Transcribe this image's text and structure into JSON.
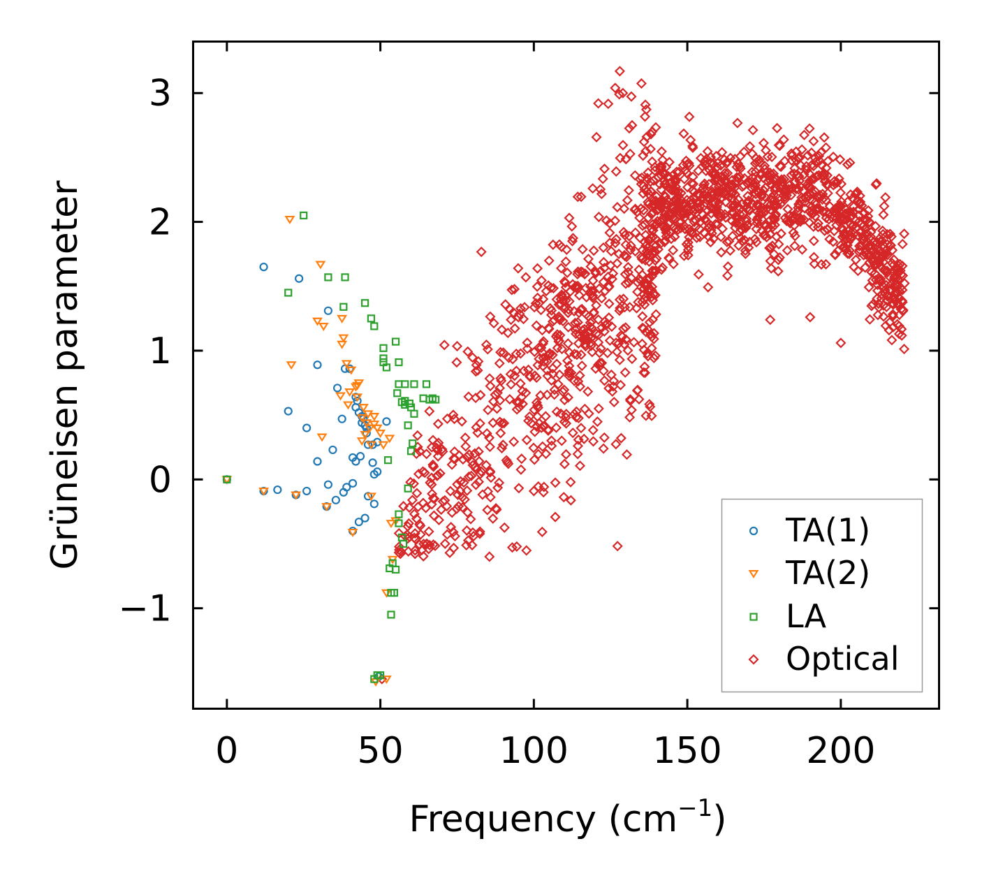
{
  "chart_data": {
    "type": "scatter",
    "title": "",
    "xlabel": "Frequency (cm",
    "xlabel_sup": "−1",
    "xlabel_close": ")",
    "ylabel": "Grüneisen parameter",
    "xlim": [
      -11,
      232
    ],
    "ylim": [
      -1.78,
      3.4
    ],
    "xticks": [
      0,
      50,
      100,
      150,
      200
    ],
    "xtick_labels": [
      "0",
      "50",
      "100",
      "150",
      "200"
    ],
    "yticks": [
      -1,
      0,
      1,
      2,
      3
    ],
    "ytick_labels": [
      "−1",
      "0",
      "1",
      "2",
      "3"
    ],
    "grid": false,
    "legend_position": "bottom-right",
    "series": [
      {
        "name": "TA(1)",
        "marker": "circle",
        "color": "#1f77b4",
        "points": [
          [
            0,
            0
          ],
          [
            12,
            1.65
          ],
          [
            12,
            -0.09
          ],
          [
            16.5,
            -0.08
          ],
          [
            20,
            0.53
          ],
          [
            22.5,
            -0.12
          ],
          [
            23.5,
            1.56
          ],
          [
            26,
            0.4
          ],
          [
            26,
            -0.09
          ],
          [
            29.5,
            0.89
          ],
          [
            29.5,
            0.14
          ],
          [
            32.5,
            -0.21
          ],
          [
            33,
            1.31
          ],
          [
            33,
            -0.04
          ],
          [
            34.5,
            0.23
          ],
          [
            35.5,
            -0.16
          ],
          [
            36,
            0.71
          ],
          [
            37.5,
            0.47
          ],
          [
            38,
            -0.1
          ],
          [
            38.5,
            0.86
          ],
          [
            39,
            -0.06
          ],
          [
            40,
            0.86
          ],
          [
            41,
            0.17
          ],
          [
            41,
            -0.03
          ],
          [
            41,
            -0.4
          ],
          [
            42,
            0.64
          ],
          [
            42,
            0.56
          ],
          [
            42,
            0.14
          ],
          [
            42.5,
            0.61
          ],
          [
            43,
            0.52
          ],
          [
            43,
            -0.33
          ],
          [
            43.5,
            0.18
          ],
          [
            44,
            0.49
          ],
          [
            44,
            0.44
          ],
          [
            44.5,
            0.47
          ],
          [
            45,
            -0.3
          ],
          [
            45,
            0.42
          ],
          [
            45.5,
            0.36
          ],
          [
            45.5,
            0.4
          ],
          [
            46,
            0.27
          ],
          [
            46,
            -0.13
          ],
          [
            47.5,
            0.27
          ],
          [
            47.5,
            0.13
          ],
          [
            48,
            -0.19
          ],
          [
            48,
            0.04
          ],
          [
            49,
            0.06
          ],
          [
            49,
            0.29
          ],
          [
            49.5,
            -1.53
          ],
          [
            52,
            0.45
          ]
        ]
      },
      {
        "name": "TA(2)",
        "marker": "triangle-down",
        "color": "#ff7f0e",
        "points": [
          [
            0,
            0
          ],
          [
            12,
            -0.09
          ],
          [
            20.5,
            2.02
          ],
          [
            21,
            0.89
          ],
          [
            22.5,
            -0.12
          ],
          [
            29.5,
            1.23
          ],
          [
            30.5,
            1.67
          ],
          [
            31,
            0.33
          ],
          [
            31.5,
            1.19
          ],
          [
            32.5,
            -0.21
          ],
          [
            37,
            0.65
          ],
          [
            37.5,
            1.25
          ],
          [
            37.5,
            1.05
          ],
          [
            38,
            1.1
          ],
          [
            39,
            0.9
          ],
          [
            39.5,
            0.58
          ],
          [
            40,
            0.68
          ],
          [
            40.5,
            0.85
          ],
          [
            41,
            -0.41
          ],
          [
            42,
            0.72
          ],
          [
            42.5,
            0.64
          ],
          [
            42.5,
            0.73
          ],
          [
            43,
            0.75
          ],
          [
            44,
            0.48
          ],
          [
            44,
            0.3
          ],
          [
            44.5,
            0.56
          ],
          [
            45,
            0.35
          ],
          [
            45.5,
            0.44
          ],
          [
            46,
            0.51
          ],
          [
            46.5,
            0.4
          ],
          [
            47,
            0.27
          ],
          [
            47,
            -0.13
          ],
          [
            48,
            0.49
          ],
          [
            48,
            0.43
          ],
          [
            48.5,
            -1.57
          ],
          [
            49,
            0.4
          ],
          [
            50,
            0.36
          ],
          [
            51,
            0.27
          ],
          [
            52,
            -0.88
          ],
          [
            52,
            -1.55
          ],
          [
            53,
            0.32
          ],
          [
            53.5,
            -0.34
          ],
          [
            54,
            -0.62
          ],
          [
            55,
            -0.32
          ]
        ]
      },
      {
        "name": "LA",
        "marker": "square",
        "color": "#2ca02c",
        "points": [
          [
            0,
            0
          ],
          [
            20,
            1.45
          ],
          [
            25,
            2.05
          ],
          [
            33,
            1.57
          ],
          [
            38,
            1.34
          ],
          [
            38.5,
            1.57
          ],
          [
            45,
            1.37
          ],
          [
            47,
            1.25
          ],
          [
            48,
            1.19
          ],
          [
            51,
            0.94
          ],
          [
            51,
            1.02
          ],
          [
            51,
            0.91
          ],
          [
            52,
            0.87
          ],
          [
            52.5,
            0.15
          ],
          [
            53,
            -0.69
          ],
          [
            53.5,
            -1.05
          ],
          [
            53.5,
            -0.88
          ],
          [
            54,
            -0.65
          ],
          [
            54.5,
            -0.88
          ],
          [
            55,
            1.07
          ],
          [
            55,
            -0.7
          ],
          [
            55.5,
            0.67
          ],
          [
            56,
            0.91
          ],
          [
            56,
            0.74
          ],
          [
            56,
            -0.34
          ],
          [
            56,
            -0.27
          ],
          [
            57,
            0.6
          ],
          [
            57,
            -0.45
          ],
          [
            57.5,
            -0.5
          ],
          [
            58,
            0.58
          ],
          [
            58,
            0.74
          ],
          [
            58,
            0.61
          ],
          [
            59,
            0.42
          ],
          [
            59,
            -0.07
          ],
          [
            59.5,
            0.59
          ],
          [
            60,
            0.56
          ],
          [
            60,
            0.22
          ],
          [
            60.5,
            0.28
          ],
          [
            61,
            0.74
          ],
          [
            61,
            0.51
          ],
          [
            64,
            0.63
          ],
          [
            65,
            0.74
          ],
          [
            66,
            0.62
          ],
          [
            67,
            0.63
          ],
          [
            68,
            0.62
          ],
          [
            48,
            -1.55
          ],
          [
            49,
            -1.52
          ],
          [
            50,
            -1.52
          ]
        ]
      },
      {
        "name": "Optical",
        "marker": "diamond",
        "color": "#d62728",
        "generated": true,
        "anchor_points": [
          [
            50.5,
            -1.55
          ],
          [
            128,
            3.17
          ],
          [
            126.5,
            3.04
          ],
          [
            129,
            3
          ],
          [
            121,
            2.92
          ],
          [
            132,
            2.75
          ],
          [
            200,
            1.06
          ],
          [
            219,
            1.13
          ],
          [
            177,
            1.24
          ],
          [
            190,
            1.26
          ],
          [
            110,
            0.12
          ],
          [
            103,
            0.88
          ],
          [
            100,
            -0.09
          ],
          [
            65,
            -0.5
          ],
          [
            73,
            -0.37
          ]
        ]
      }
    ]
  }
}
